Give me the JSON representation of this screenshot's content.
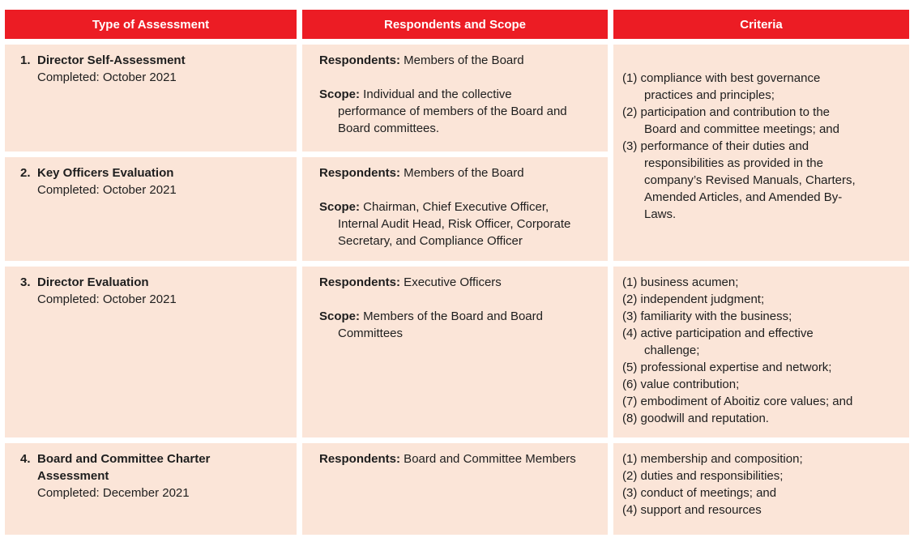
{
  "colors": {
    "header_bg": "#EC1C24",
    "cell_bg": "#FBE5D8",
    "header_text": "#FFFFFF",
    "body_text": "#1E1E1E"
  },
  "header": {
    "col1": "Type of Assessment",
    "col2": "Respondents and Scope",
    "col3": "Criteria"
  },
  "rows": [
    {
      "num": "1.",
      "title": "Director Self-Assessment",
      "completed": "Completed: October 2021",
      "respondents_label": "Respondents:",
      "respondents": " Members of the Board",
      "scope_label": "Scope:",
      "scope": " Individual and the collective\nperformance of members of the Board and\nBoard committees."
    },
    {
      "num": "2.",
      "title": "Key Officers Evaluation",
      "completed": "Completed: October 2021",
      "respondents_label": "Respondents:",
      "respondents": " Members of the Board",
      "scope_label": "Scope:",
      "scope": " Chairman, Chief Executive Officer,\nInternal Audit Head, Risk Officer, Corporate\nSecretary, and Compliance Officer"
    },
    {
      "num": "3.",
      "title": "Director Evaluation",
      "completed": "Completed: October 2021",
      "respondents_label": "Respondents:",
      "respondents": " Executive Officers",
      "scope_label": "Scope:",
      "scope": " Members of the Board and Board\nCommittees"
    },
    {
      "num": "4.",
      "title": "Board and Committee Charter\nAssessment",
      "completed": "Completed: December 2021",
      "respondents_label": "Respondents:",
      "respondents": " Board and Committee Members"
    }
  ],
  "criteria": {
    "rows12": {
      "items": [
        {
          "num": "(1)",
          "text": " compliance with best governance\npractices and principles;"
        },
        {
          "num": "(2)",
          "text": " participation and contribution to the\nBoard and committee meetings; and"
        },
        {
          "num": "(3)",
          "text": " performance of their duties and\nresponsibilities as provided in the\ncompany’s Revised Manuals, Charters,\nAmended Articles, and Amended By-\nLaws."
        }
      ]
    },
    "row3": {
      "items": [
        {
          "num": "(1)",
          "text": " business acumen;"
        },
        {
          "num": "(2)",
          "text": " independent judgment;"
        },
        {
          "num": "(3)",
          "text": " familiarity with the business;"
        },
        {
          "num": "(4)",
          "text": " active participation and effective\nchallenge;"
        },
        {
          "num": "(5)",
          "text": " professional expertise and network;"
        },
        {
          "num": "(6)",
          "text": " value contribution;"
        },
        {
          "num": "(7)",
          "text": " embodiment of Aboitiz core values; and"
        },
        {
          "num": "(8)",
          "text": " goodwill and reputation."
        }
      ]
    },
    "row4": {
      "items": [
        {
          "num": "(1)",
          "text": " membership and composition;"
        },
        {
          "num": "(2)",
          "text": " duties and responsibilities;"
        },
        {
          "num": "(3)",
          "text": " conduct of meetings; and"
        },
        {
          "num": "(4)",
          "text": " support and resources"
        }
      ]
    }
  }
}
